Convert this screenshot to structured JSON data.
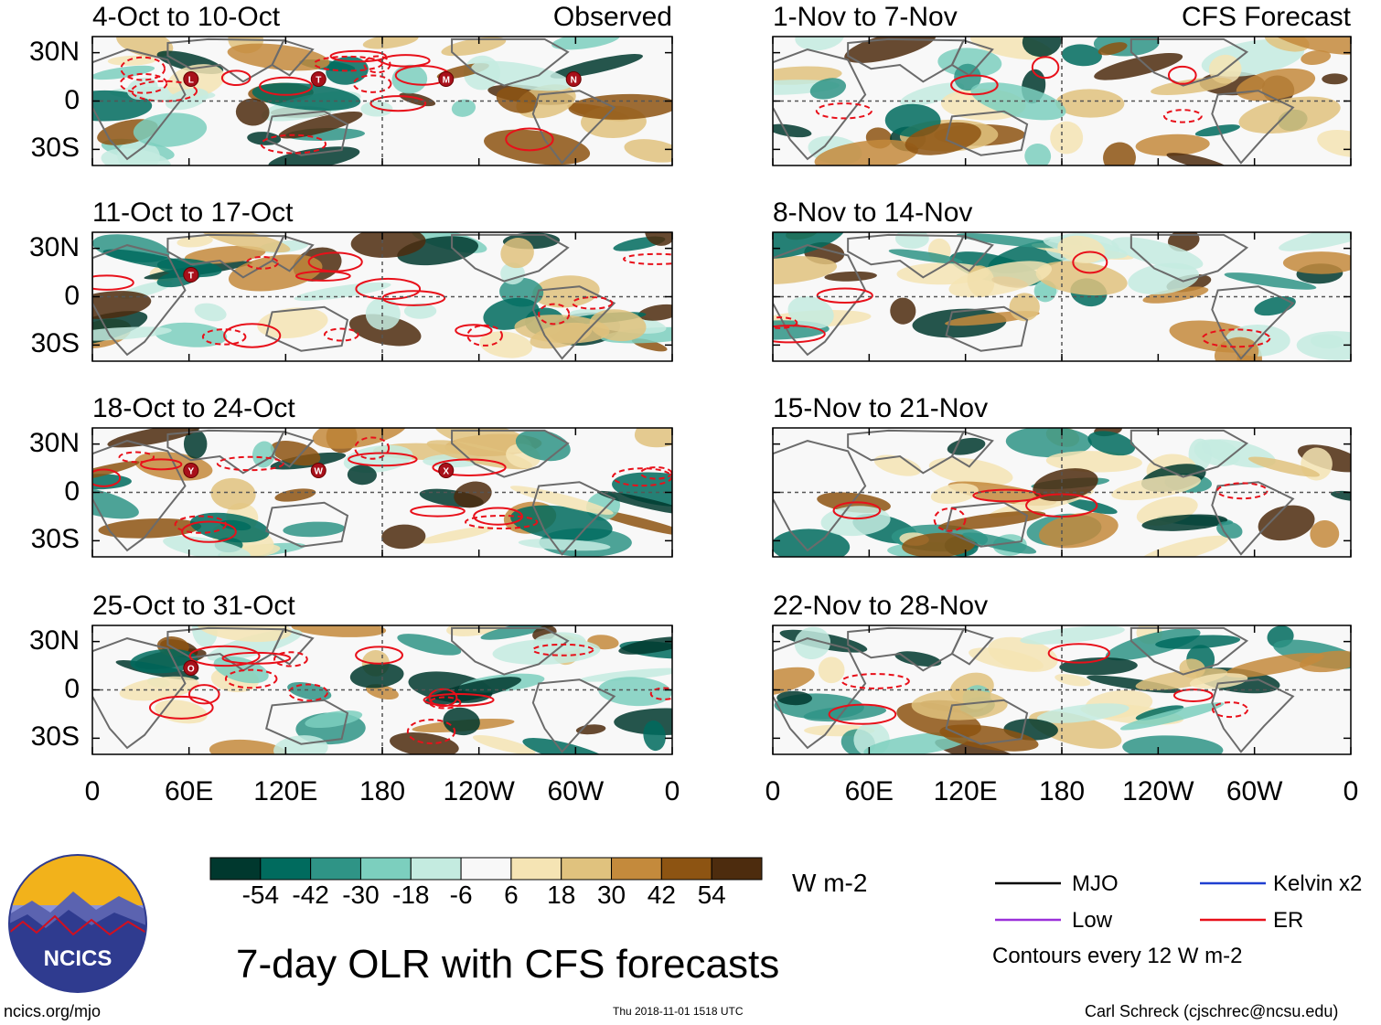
{
  "figure_title": "7-day OLR with CFS forecasts",
  "units_label": "W m-2",
  "logo_text": "NCICS",
  "footer": {
    "left": "ncics.org/mjo",
    "center": "Thu 2018-11-01 1518 UTC",
    "right": "Carl Schreck (cjschrec@ncsu.edu)"
  },
  "legend": {
    "items": [
      {
        "name": "MJO",
        "color": "#000000"
      },
      {
        "name": "Low",
        "color": "#9b30d9"
      },
      {
        "name": "Kelvin x2",
        "color": "#1f3fd0"
      },
      {
        "name": "ER",
        "color": "#e8101a"
      }
    ],
    "note": "Contours every 12 W m-2"
  },
  "colorbar": {
    "ticks": [
      "-54",
      "-42",
      "-30",
      "-18",
      "-6",
      "6",
      "18",
      "30",
      "42",
      "54"
    ],
    "colors": [
      "#00382e",
      "#006b5e",
      "#2f9486",
      "#7ccfbe",
      "#c4ebe0",
      "#f8f8f8",
      "#f5e4b4",
      "#e0c27e",
      "#c48a3c",
      "#8d5412",
      "#4d2c0e"
    ]
  },
  "chart_data": [
    {
      "type": "heatmap",
      "title": "4-Oct to 10-Oct",
      "subtitle": "Observed",
      "xlabels": [
        "0",
        "60E",
        "120E",
        "180",
        "120W",
        "60W",
        "0"
      ],
      "ylabels": [
        "30N",
        "0",
        "30S"
      ],
      "storms": [
        "L",
        "T",
        "M",
        "N"
      ]
    },
    {
      "type": "heatmap",
      "title": "11-Oct to 17-Oct",
      "xlabels": [
        "0",
        "60E",
        "120E",
        "180",
        "120W",
        "60W",
        "0"
      ],
      "ylabels": [
        "30N",
        "0",
        "30S"
      ],
      "storms": [
        "T"
      ]
    },
    {
      "type": "heatmap",
      "title": "18-Oct to 24-Oct",
      "xlabels": [
        "0",
        "60E",
        "120E",
        "180",
        "120W",
        "60W",
        "0"
      ],
      "ylabels": [
        "30N",
        "0",
        "30S"
      ],
      "storms": [
        "Y",
        "W",
        "X"
      ]
    },
    {
      "type": "heatmap",
      "title": "25-Oct to 31-Oct",
      "xlabels": [
        "0",
        "60E",
        "120E",
        "180",
        "120W",
        "60W",
        "0"
      ],
      "ylabels": [
        "30N",
        "0",
        "30S"
      ],
      "storms": [
        "O"
      ]
    },
    {
      "type": "heatmap",
      "title": "1-Nov to 7-Nov",
      "subtitle": "CFS Forecast",
      "xlabels": [
        "0",
        "60E",
        "120E",
        "180",
        "120W",
        "60W",
        "0"
      ],
      "ylabels": [
        "30N",
        "0",
        "30S"
      ],
      "storms": []
    },
    {
      "type": "heatmap",
      "title": "8-Nov to 14-Nov",
      "xlabels": [
        "0",
        "60E",
        "120E",
        "180",
        "120W",
        "60W",
        "0"
      ],
      "ylabels": [
        "30N",
        "0",
        "30S"
      ],
      "storms": []
    },
    {
      "type": "heatmap",
      "title": "15-Nov to 21-Nov",
      "xlabels": [
        "0",
        "60E",
        "120E",
        "180",
        "120W",
        "60W",
        "0"
      ],
      "ylabels": [
        "30N",
        "0",
        "30S"
      ],
      "storms": []
    },
    {
      "type": "heatmap",
      "title": "22-Nov to 28-Nov",
      "xlabels": [
        "0",
        "60E",
        "120E",
        "180",
        "120W",
        "60W",
        "0"
      ],
      "ylabels": [
        "30N",
        "0",
        "30S"
      ],
      "storms": []
    }
  ],
  "xaxis_bottom": [
    "0",
    "60E",
    "120E",
    "180",
    "120W",
    "60W",
    "0"
  ]
}
